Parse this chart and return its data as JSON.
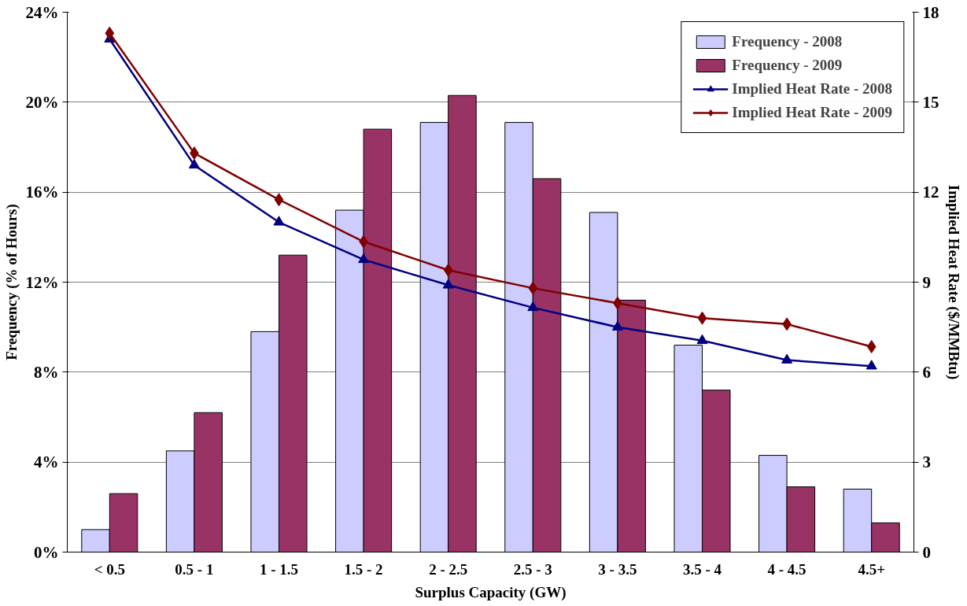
{
  "chart_data": {
    "type": "bar",
    "xlabel": "Surplus Capacity (GW)",
    "ylabel": "Frequency (% of Hours)",
    "y2label": "Implied Heat Rate ($/MMBtu)",
    "categories": [
      "< 0.5",
      "0.5 - 1",
      "1 - 1.5",
      "1.5 - 2",
      "2 - 2.5",
      "2.5 - 3",
      "3 - 3.5",
      "3.5 - 4",
      "4 - 4.5",
      "4.5+"
    ],
    "series": [
      {
        "name": "Frequency - 2008",
        "color": "#ccccff",
        "values": [
          1.0,
          4.5,
          9.8,
          15.2,
          19.1,
          19.1,
          15.1,
          9.2,
          4.3,
          2.8
        ]
      },
      {
        "name": "Frequency - 2009",
        "color": "#993366",
        "values": [
          2.6,
          6.2,
          13.2,
          18.8,
          20.3,
          16.6,
          11.2,
          7.2,
          2.9,
          1.3
        ]
      },
      {
        "name": "Implied Heat Rate - 2008",
        "type": "line",
        "axis": "y2",
        "marker": "triangle",
        "color": "#000080",
        "values": [
          17.1,
          12.9,
          11.0,
          9.75,
          8.9,
          8.15,
          7.5,
          7.05,
          6.4,
          6.2
        ]
      },
      {
        "name": "Implied Heat Rate - 2009",
        "type": "line",
        "axis": "y2",
        "marker": "diamond",
        "color": "#800000",
        "values": [
          17.3,
          13.3,
          11.75,
          10.35,
          9.4,
          8.8,
          8.3,
          7.8,
          7.6,
          6.85
        ]
      }
    ],
    "ylim": [
      0,
      24
    ],
    "yticks": [
      {
        "value": 0,
        "label": "0%"
      },
      {
        "value": 4,
        "label": "4%"
      },
      {
        "value": 8,
        "label": "8%"
      },
      {
        "value": 12,
        "label": "12%"
      },
      {
        "value": 16,
        "label": "16%"
      },
      {
        "value": 20,
        "label": "20%"
      },
      {
        "value": 24,
        "label": "24%"
      }
    ],
    "y2lim": [
      0,
      18
    ],
    "y2ticks": [
      0,
      3,
      6,
      9,
      12,
      15,
      18
    ],
    "grid": "y",
    "legend": "top right"
  }
}
